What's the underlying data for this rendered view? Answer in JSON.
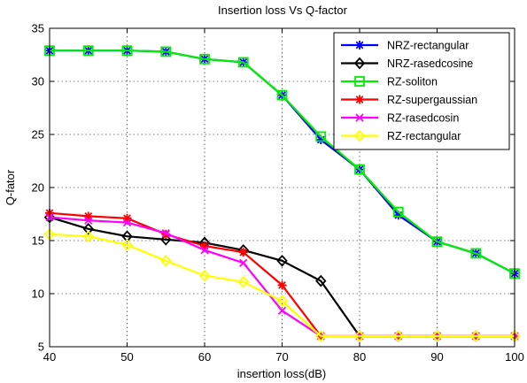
{
  "chart_data": {
    "type": "line",
    "title": "Insertion loss Vs Q-factor",
    "xlabel": "insertion loss(dB)",
    "ylabel": "Q-fator",
    "xlim": [
      40,
      100
    ],
    "ylim": [
      5,
      35
    ],
    "xticks": [
      40,
      50,
      60,
      70,
      80,
      90,
      100
    ],
    "yticks": [
      5,
      10,
      15,
      20,
      25,
      30,
      35
    ],
    "grid": true,
    "legend_position": "top-right",
    "x": [
      40,
      45,
      50,
      55,
      60,
      65,
      70,
      75,
      80,
      85,
      90,
      95,
      100
    ],
    "series": [
      {
        "name": "NRZ-rectangular",
        "color": "#0000ff",
        "marker": "star",
        "values": [
          32.9,
          32.9,
          32.9,
          32.8,
          32.1,
          31.8,
          28.7,
          24.5,
          21.7,
          17.4,
          14.9,
          13.8,
          11.9
        ]
      },
      {
        "name": "NRZ-rasedcosine",
        "color": "#000000",
        "marker": "diamond",
        "values": [
          17.2,
          16.1,
          15.4,
          15.1,
          14.8,
          14.1,
          13.1,
          11.2,
          6.0,
          6.0,
          6.0,
          6.0,
          6.0
        ]
      },
      {
        "name": "RZ-soliton",
        "color": "#00ee00",
        "marker": "square",
        "values": [
          32.9,
          32.9,
          32.9,
          32.8,
          32.1,
          31.8,
          28.7,
          24.8,
          21.7,
          17.7,
          14.9,
          13.8,
          11.9
        ]
      },
      {
        "name": "RZ-supergaussian",
        "color": "#ff0000",
        "marker": "star",
        "values": [
          17.6,
          17.3,
          17.1,
          15.6,
          14.5,
          13.9,
          10.8,
          6.0,
          6.0,
          6.0,
          6.0,
          6.0,
          6.0
        ]
      },
      {
        "name": "RZ-rasedcosin",
        "color": "#ff00ff",
        "marker": "cross",
        "values": [
          17.2,
          16.9,
          16.7,
          15.7,
          14.1,
          12.9,
          8.4,
          6.0,
          6.0,
          6.0,
          6.0,
          6.0,
          6.0
        ]
      },
      {
        "name": "RZ-rectangular",
        "color": "#ffff00",
        "marker": "diamond",
        "values": [
          15.6,
          15.4,
          14.6,
          13.1,
          11.7,
          11.1,
          9.3,
          6.0,
          6.0,
          6.0,
          6.0,
          6.0,
          6.0
        ]
      }
    ]
  }
}
